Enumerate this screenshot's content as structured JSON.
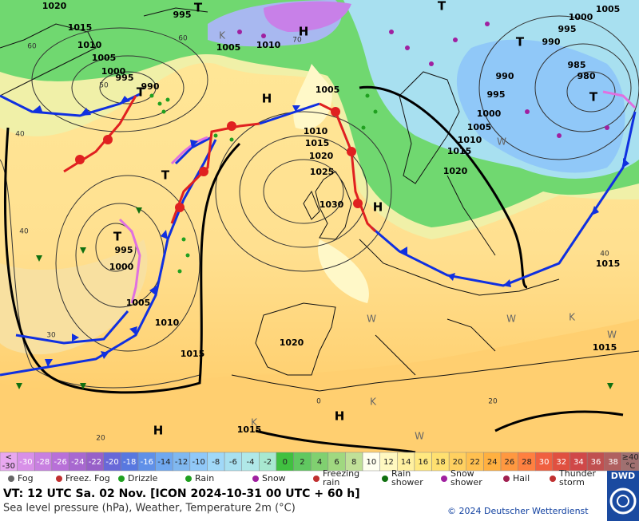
{
  "map": {
    "isobar_labels": [
      1020,
      1015,
      1010,
      1005,
      1000,
      995,
      990,
      995,
      1005,
      1010,
      1005,
      1010,
      1015,
      1020,
      1025,
      1030,
      1000,
      1005,
      995,
      990,
      985,
      980,
      990,
      995,
      1000,
      1005,
      1010,
      1015,
      1020,
      995,
      1000,
      1005,
      1010,
      1015,
      1020,
      1015,
      1015,
      1015
    ],
    "isotherm_labels": [
      60,
      50,
      40,
      40,
      30,
      20,
      40,
      20,
      0,
      70,
      60
    ],
    "centers": [
      "H",
      "H",
      "T",
      "T",
      "T",
      "H",
      "T",
      "T",
      "T",
      "T",
      "H",
      "H"
    ],
    "warm_cold_marks": [
      "K",
      "W",
      "W",
      "K",
      "K",
      "W",
      "K",
      "W",
      "W"
    ]
  },
  "temperature_scale": {
    "cells": [
      {
        "top": "<",
        "bottom": "-30",
        "color": "#e8a8f0"
      },
      {
        "value": -30,
        "color": "#d890e8"
      },
      {
        "value": -28,
        "color": "#c880e0"
      },
      {
        "value": -26,
        "color": "#b870d8"
      },
      {
        "value": -24,
        "color": "#a868d0"
      },
      {
        "value": -22,
        "color": "#9860c8"
      },
      {
        "value": -20,
        "color": "#6868d8"
      },
      {
        "value": -18,
        "color": "#5878e0"
      },
      {
        "value": -16,
        "color": "#6090e8"
      },
      {
        "value": -14,
        "color": "#70a8f0"
      },
      {
        "value": -12,
        "color": "#80b8f0"
      },
      {
        "value": -10,
        "color": "#90c8f8"
      },
      {
        "value": -8,
        "color": "#a0d8f8"
      },
      {
        "value": -6,
        "color": "#a8e0f0"
      },
      {
        "value": -4,
        "color": "#b0e8e8"
      },
      {
        "value": -2,
        "color": "#a8e8d0"
      },
      {
        "value": 0,
        "color": "#40c040"
      },
      {
        "value": 2,
        "color": "#60c860"
      },
      {
        "value": 4,
        "color": "#80d070"
      },
      {
        "value": 6,
        "color": "#a0d880"
      },
      {
        "value": 8,
        "color": "#c0e098"
      },
      {
        "value": 10,
        "color": "#fffff0"
      },
      {
        "value": 12,
        "color": "#fff8c0"
      },
      {
        "value": 14,
        "color": "#fff0a0"
      },
      {
        "value": 16,
        "color": "#ffe880"
      },
      {
        "value": 18,
        "color": "#ffe070"
      },
      {
        "value": 20,
        "color": "#ffd060"
      },
      {
        "value": 22,
        "color": "#ffc050"
      },
      {
        "value": 24,
        "color": "#ffb040"
      },
      {
        "value": 26,
        "color": "#ff9840"
      },
      {
        "value": 28,
        "color": "#ff8040"
      },
      {
        "value": 30,
        "color": "#f06040"
      },
      {
        "value": 32,
        "color": "#e05040"
      },
      {
        "value": 34,
        "color": "#d04848"
      },
      {
        "value": 36,
        "color": "#c05050"
      },
      {
        "value": 38,
        "color": "#b06060"
      },
      {
        "top": "≥40",
        "bottom": "°C",
        "color": "#a07070"
      }
    ]
  },
  "legend": [
    "Fog",
    "Freez. Fog",
    "Drizzle",
    "Rain",
    "Snow",
    "Freezing rain",
    "Rain shower",
    "Snow shower",
    "Hail",
    "Thunder storm"
  ],
  "footer": {
    "valid_time": "VT: 12 UTC Sa.  02 Nov. [ICON 2024-10-31  00 UTC + 60 h]",
    "description": "Sea level pressure (hPa), Weather, Temperature 2m (°C)",
    "copyright": "© 2024 Deutscher Wetterdienst",
    "logo": "DWD"
  }
}
